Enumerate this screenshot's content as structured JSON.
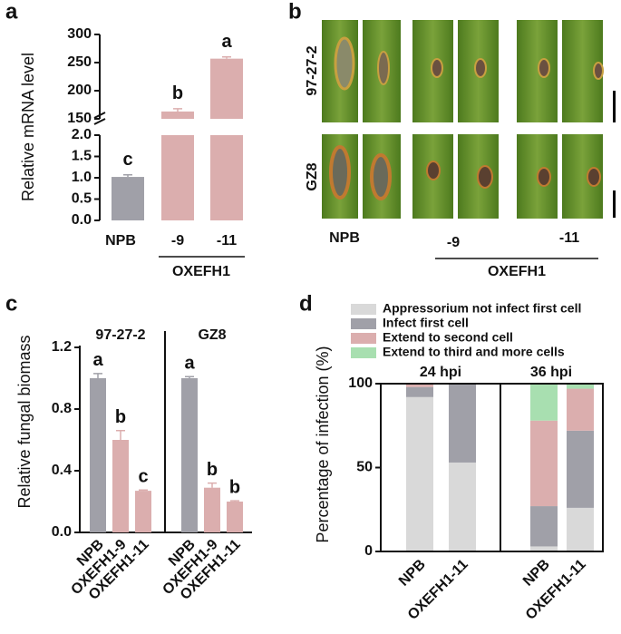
{
  "chart_data": [
    {
      "type": "broken_bar",
      "panel_label": "a",
      "ylabel": "Relative mRNA level",
      "categories": [
        "NPB",
        "-9",
        "-11"
      ],
      "group_label": "OXEFH1",
      "values": [
        1.02,
        163,
        257
      ],
      "errors": [
        0.05,
        5,
        3
      ],
      "annotations": [
        "c",
        "b",
        "a"
      ],
      "colors": [
        "#a0a0a8",
        "#dbaeae",
        "#dbaeae"
      ],
      "ylim": [
        0,
        300
      ],
      "axis_break": [
        2,
        150
      ],
      "yticks": [
        {
          "value": 0,
          "label": "0.0"
        },
        {
          "value": 0.5,
          "label": "0.5"
        },
        {
          "value": 1,
          "label": "1.0"
        },
        {
          "value": 1.5,
          "label": "1.5"
        },
        {
          "value": 2,
          "label": "2.0"
        },
        150,
        200,
        250,
        300
      ]
    },
    {
      "type": "grouped_bar",
      "panel_label": "c",
      "ylabel": "Relative fungal biomass",
      "categories": [
        "NPB",
        "OXEFH1-9",
        "OXEFH1-11"
      ],
      "colors": [
        "#a0a0a8",
        "#dbaeae",
        "#dbaeae"
      ],
      "groups": [
        {
          "name": "97-27-2",
          "values": [
            1.0,
            0.6,
            0.27
          ],
          "errors": [
            0.03,
            0.06,
            0.005
          ],
          "annotations": [
            "a",
            "b",
            "c"
          ]
        },
        {
          "name": "GZ8",
          "values": [
            1.0,
            0.29,
            0.2
          ],
          "errors": [
            0.01,
            0.03,
            0.005
          ],
          "annotations": [
            "a",
            "b",
            "b"
          ]
        }
      ],
      "ylim": [
        0,
        1.2
      ],
      "yticks": [
        {
          "value": 0,
          "label": "0.0"
        },
        0.4,
        0.8,
        1.2
      ]
    },
    {
      "type": "stacked_bar",
      "panel_label": "d",
      "ylabel": "Percentage of infection (%)",
      "categories": [
        "NPB",
        "OXEFH1-11",
        "NPB",
        "OXEFH1-11"
      ],
      "groups": [
        "24 hpi",
        "36 hpi"
      ],
      "series": [
        {
          "name": "Appressorium not infect first cell",
          "color": "#d9d9d9",
          "values": [
            92,
            53,
            3,
            26
          ]
        },
        {
          "name": "Infect first cell",
          "color": "#a0a0a8",
          "values": [
            6,
            47,
            24,
            46
          ]
        },
        {
          "name": "Extend to second cell",
          "color": "#dbaeae",
          "values": [
            2,
            0,
            51,
            25
          ]
        },
        {
          "name": "Extend to third and more cells",
          "color": "#a8dfb0",
          "values": [
            0,
            0,
            22,
            3
          ]
        }
      ],
      "ylim": [
        0,
        100
      ],
      "yticks": [
        0,
        50,
        100
      ]
    }
  ],
  "photo_panel": {
    "panel_label": "b",
    "rows": [
      "97-27-2",
      "GZ8"
    ],
    "columns": [
      "NPB",
      "-9",
      "-11"
    ],
    "group_label": "OXEFH1"
  }
}
